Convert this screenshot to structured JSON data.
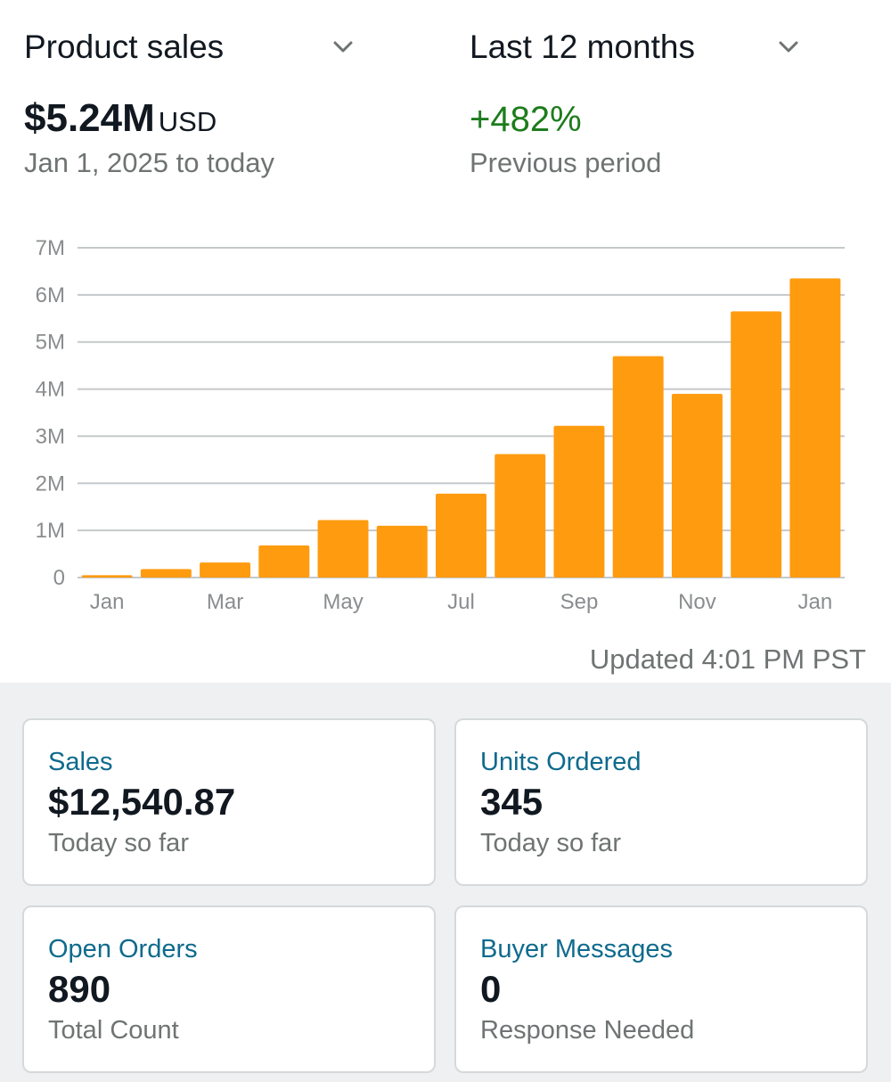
{
  "header": {
    "metric_selector": "Product sales",
    "period_selector": "Last 12 months"
  },
  "summary": {
    "total_value": "$5.24M",
    "currency": "USD",
    "range": "Jan 1, 2025 to today",
    "change": "+482%",
    "change_label": "Previous period"
  },
  "colors": {
    "bar": "#ff9b0f",
    "positive": "#1d7c1d",
    "link": "#0e6a8d"
  },
  "chart_data": {
    "type": "bar",
    "categories": [
      "Jan",
      "Feb",
      "Mar",
      "Apr",
      "May",
      "Jun",
      "Jul",
      "Aug",
      "Sep",
      "Oct",
      "Nov",
      "Dec",
      "Jan"
    ],
    "x_tick_labels": [
      "Jan",
      "",
      "Mar",
      "",
      "May",
      "",
      "Jul",
      "",
      "Sep",
      "",
      "Nov",
      "",
      "Jan"
    ],
    "values": [
      0.05,
      0.18,
      0.32,
      0.68,
      1.22,
      1.1,
      1.78,
      2.62,
      3.22,
      4.7,
      3.9,
      5.65,
      6.35
    ],
    "value_unit": "M",
    "y_tick_labels": [
      "0",
      "1M",
      "2M",
      "3M",
      "4M",
      "5M",
      "6M",
      "7M"
    ],
    "ylim": [
      0,
      7
    ],
    "grid": true,
    "title": "",
    "xlabel": "",
    "ylabel": ""
  },
  "updated": "Updated 4:01 PM PST",
  "cards": [
    {
      "title": "Sales",
      "value": "$12,540.87",
      "sub": "Today so far"
    },
    {
      "title": "Units Ordered",
      "value": "345",
      "sub": "Today so far"
    },
    {
      "title": "Open Orders",
      "value": "890",
      "sub": "Total Count"
    },
    {
      "title": "Buyer Messages",
      "value": "0",
      "sub": "Response Needed"
    }
  ],
  "icons": {
    "metric_dropdown": "chevron-down-icon",
    "period_dropdown": "chevron-down-icon"
  }
}
